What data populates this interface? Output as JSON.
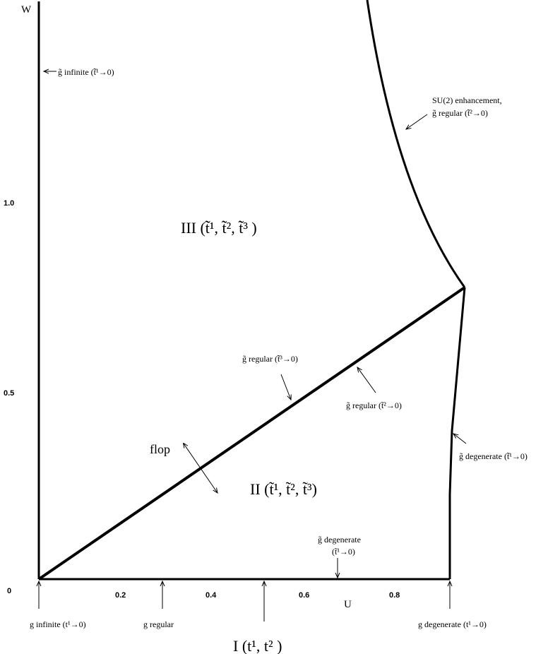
{
  "axes": {
    "y_label": "W",
    "x_label": "U",
    "origin": "0",
    "x_ticks": [
      "0.2",
      "0.4",
      "0.6",
      "0.8"
    ],
    "y_ticks": [
      "0.5",
      "1.0"
    ]
  },
  "regions": [
    "III (t̃̃¹, t̃̃², t̃̃³ )",
    "II (t̃¹, t̃², t̃³)",
    "I (t¹, t² )"
  ],
  "annotations": [
    "g̃ infinite (t̃̃¹→0)",
    "SU(2) enhancement,",
    "g̃ regular (t̃̃²→0)",
    "g̃ regular (t̃̃³→0)",
    "g̃ regular (t̃²→0)",
    "flop",
    "g̃ degenerate (t̃̃¹→0)",
    "g̃ degenerate",
    "(t̃¹→0)",
    "g infinite (t¹→0)",
    "g regular",
    "g degenerate (t¹→0)"
  ]
}
